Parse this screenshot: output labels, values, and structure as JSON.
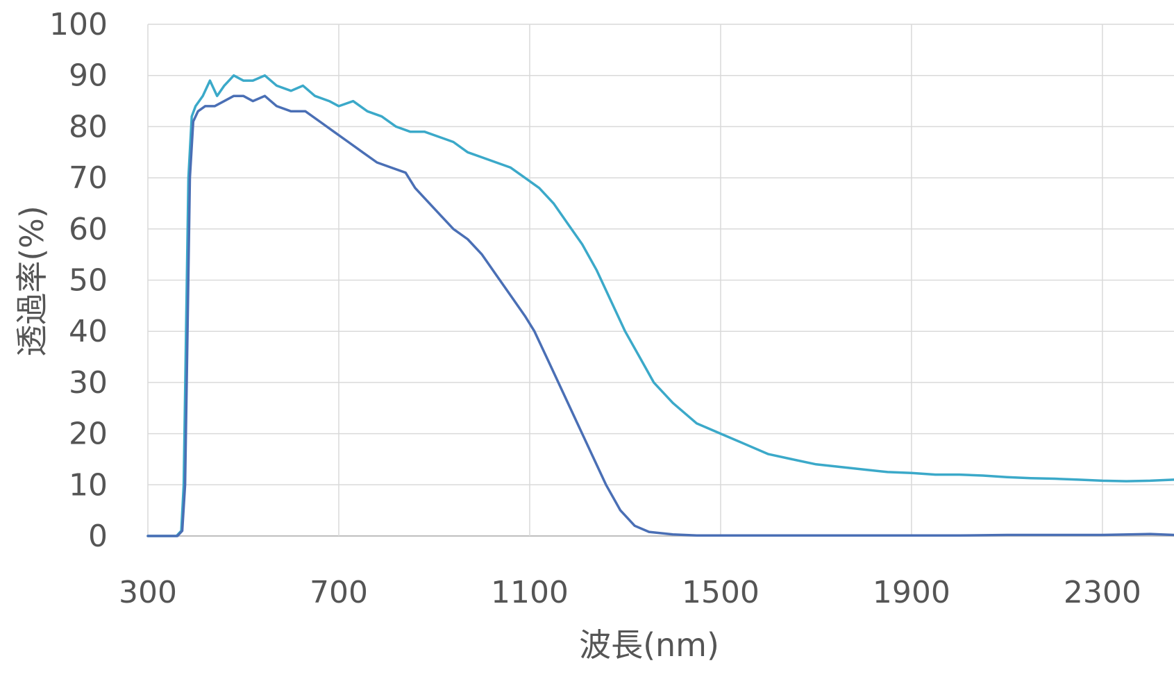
{
  "chart_data": {
    "type": "line",
    "title": "",
    "xlabel": "波長(nm)",
    "ylabel": "透過率(%)",
    "xlim": [
      300,
      2450
    ],
    "ylim": [
      0,
      100
    ],
    "x_ticks": [
      300,
      700,
      1100,
      1500,
      1900,
      2300
    ],
    "y_ticks": [
      0,
      10,
      20,
      30,
      40,
      50,
      60,
      70,
      80,
      90,
      100
    ],
    "grid": true,
    "legend": "none",
    "series": [
      {
        "color": "#3BA9C9",
        "points": [
          [
            300,
            0
          ],
          [
            360,
            0
          ],
          [
            370,
            1
          ],
          [
            375,
            10
          ],
          [
            380,
            40
          ],
          [
            385,
            70
          ],
          [
            392,
            82
          ],
          [
            400,
            84
          ],
          [
            415,
            86
          ],
          [
            430,
            89
          ],
          [
            445,
            86
          ],
          [
            460,
            88
          ],
          [
            480,
            90
          ],
          [
            500,
            89
          ],
          [
            520,
            89
          ],
          [
            545,
            90
          ],
          [
            570,
            88
          ],
          [
            600,
            87
          ],
          [
            625,
            88
          ],
          [
            650,
            86
          ],
          [
            680,
            85
          ],
          [
            700,
            84
          ],
          [
            730,
            85
          ],
          [
            760,
            83
          ],
          [
            790,
            82
          ],
          [
            820,
            80
          ],
          [
            850,
            79
          ],
          [
            880,
            79
          ],
          [
            910,
            78
          ],
          [
            940,
            77
          ],
          [
            970,
            75
          ],
          [
            1000,
            74
          ],
          [
            1030,
            73
          ],
          [
            1060,
            72
          ],
          [
            1090,
            70
          ],
          [
            1120,
            68
          ],
          [
            1150,
            65
          ],
          [
            1180,
            61
          ],
          [
            1210,
            57
          ],
          [
            1240,
            52
          ],
          [
            1270,
            46
          ],
          [
            1300,
            40
          ],
          [
            1330,
            35
          ],
          [
            1360,
            30
          ],
          [
            1400,
            26
          ],
          [
            1450,
            22
          ],
          [
            1500,
            20
          ],
          [
            1550,
            18
          ],
          [
            1600,
            16
          ],
          [
            1650,
            15
          ],
          [
            1700,
            14
          ],
          [
            1750,
            13.5
          ],
          [
            1800,
            13
          ],
          [
            1850,
            12.5
          ],
          [
            1900,
            12.3
          ],
          [
            1950,
            12
          ],
          [
            2000,
            12
          ],
          [
            2050,
            11.8
          ],
          [
            2100,
            11.5
          ],
          [
            2150,
            11.3
          ],
          [
            2200,
            11.2
          ],
          [
            2250,
            11
          ],
          [
            2300,
            10.8
          ],
          [
            2350,
            10.7
          ],
          [
            2400,
            10.8
          ],
          [
            2450,
            11
          ]
        ]
      },
      {
        "color": "#4A6FB5",
        "points": [
          [
            300,
            0
          ],
          [
            362,
            0
          ],
          [
            372,
            1
          ],
          [
            378,
            10
          ],
          [
            383,
            40
          ],
          [
            388,
            70
          ],
          [
            395,
            81
          ],
          [
            405,
            83
          ],
          [
            420,
            84
          ],
          [
            440,
            84
          ],
          [
            460,
            85
          ],
          [
            480,
            86
          ],
          [
            500,
            86
          ],
          [
            520,
            85
          ],
          [
            545,
            86
          ],
          [
            570,
            84
          ],
          [
            600,
            83
          ],
          [
            630,
            83
          ],
          [
            660,
            81
          ],
          [
            690,
            79
          ],
          [
            720,
            77
          ],
          [
            750,
            75
          ],
          [
            780,
            73
          ],
          [
            810,
            72
          ],
          [
            840,
            71
          ],
          [
            860,
            68
          ],
          [
            880,
            66
          ],
          [
            910,
            63
          ],
          [
            940,
            60
          ],
          [
            970,
            58
          ],
          [
            1000,
            55
          ],
          [
            1030,
            51
          ],
          [
            1060,
            47
          ],
          [
            1090,
            43
          ],
          [
            1110,
            40
          ],
          [
            1140,
            34
          ],
          [
            1170,
            28
          ],
          [
            1200,
            22
          ],
          [
            1230,
            16
          ],
          [
            1260,
            10
          ],
          [
            1290,
            5
          ],
          [
            1320,
            2
          ],
          [
            1350,
            0.8
          ],
          [
            1400,
            0.3
          ],
          [
            1450,
            0.1
          ],
          [
            1500,
            0.1
          ],
          [
            1600,
            0.1
          ],
          [
            1700,
            0.1
          ],
          [
            1800,
            0.1
          ],
          [
            1900,
            0.1
          ],
          [
            2000,
            0.1
          ],
          [
            2100,
            0.2
          ],
          [
            2200,
            0.2
          ],
          [
            2300,
            0.2
          ],
          [
            2400,
            0.4
          ],
          [
            2450,
            0.2
          ]
        ]
      }
    ]
  }
}
